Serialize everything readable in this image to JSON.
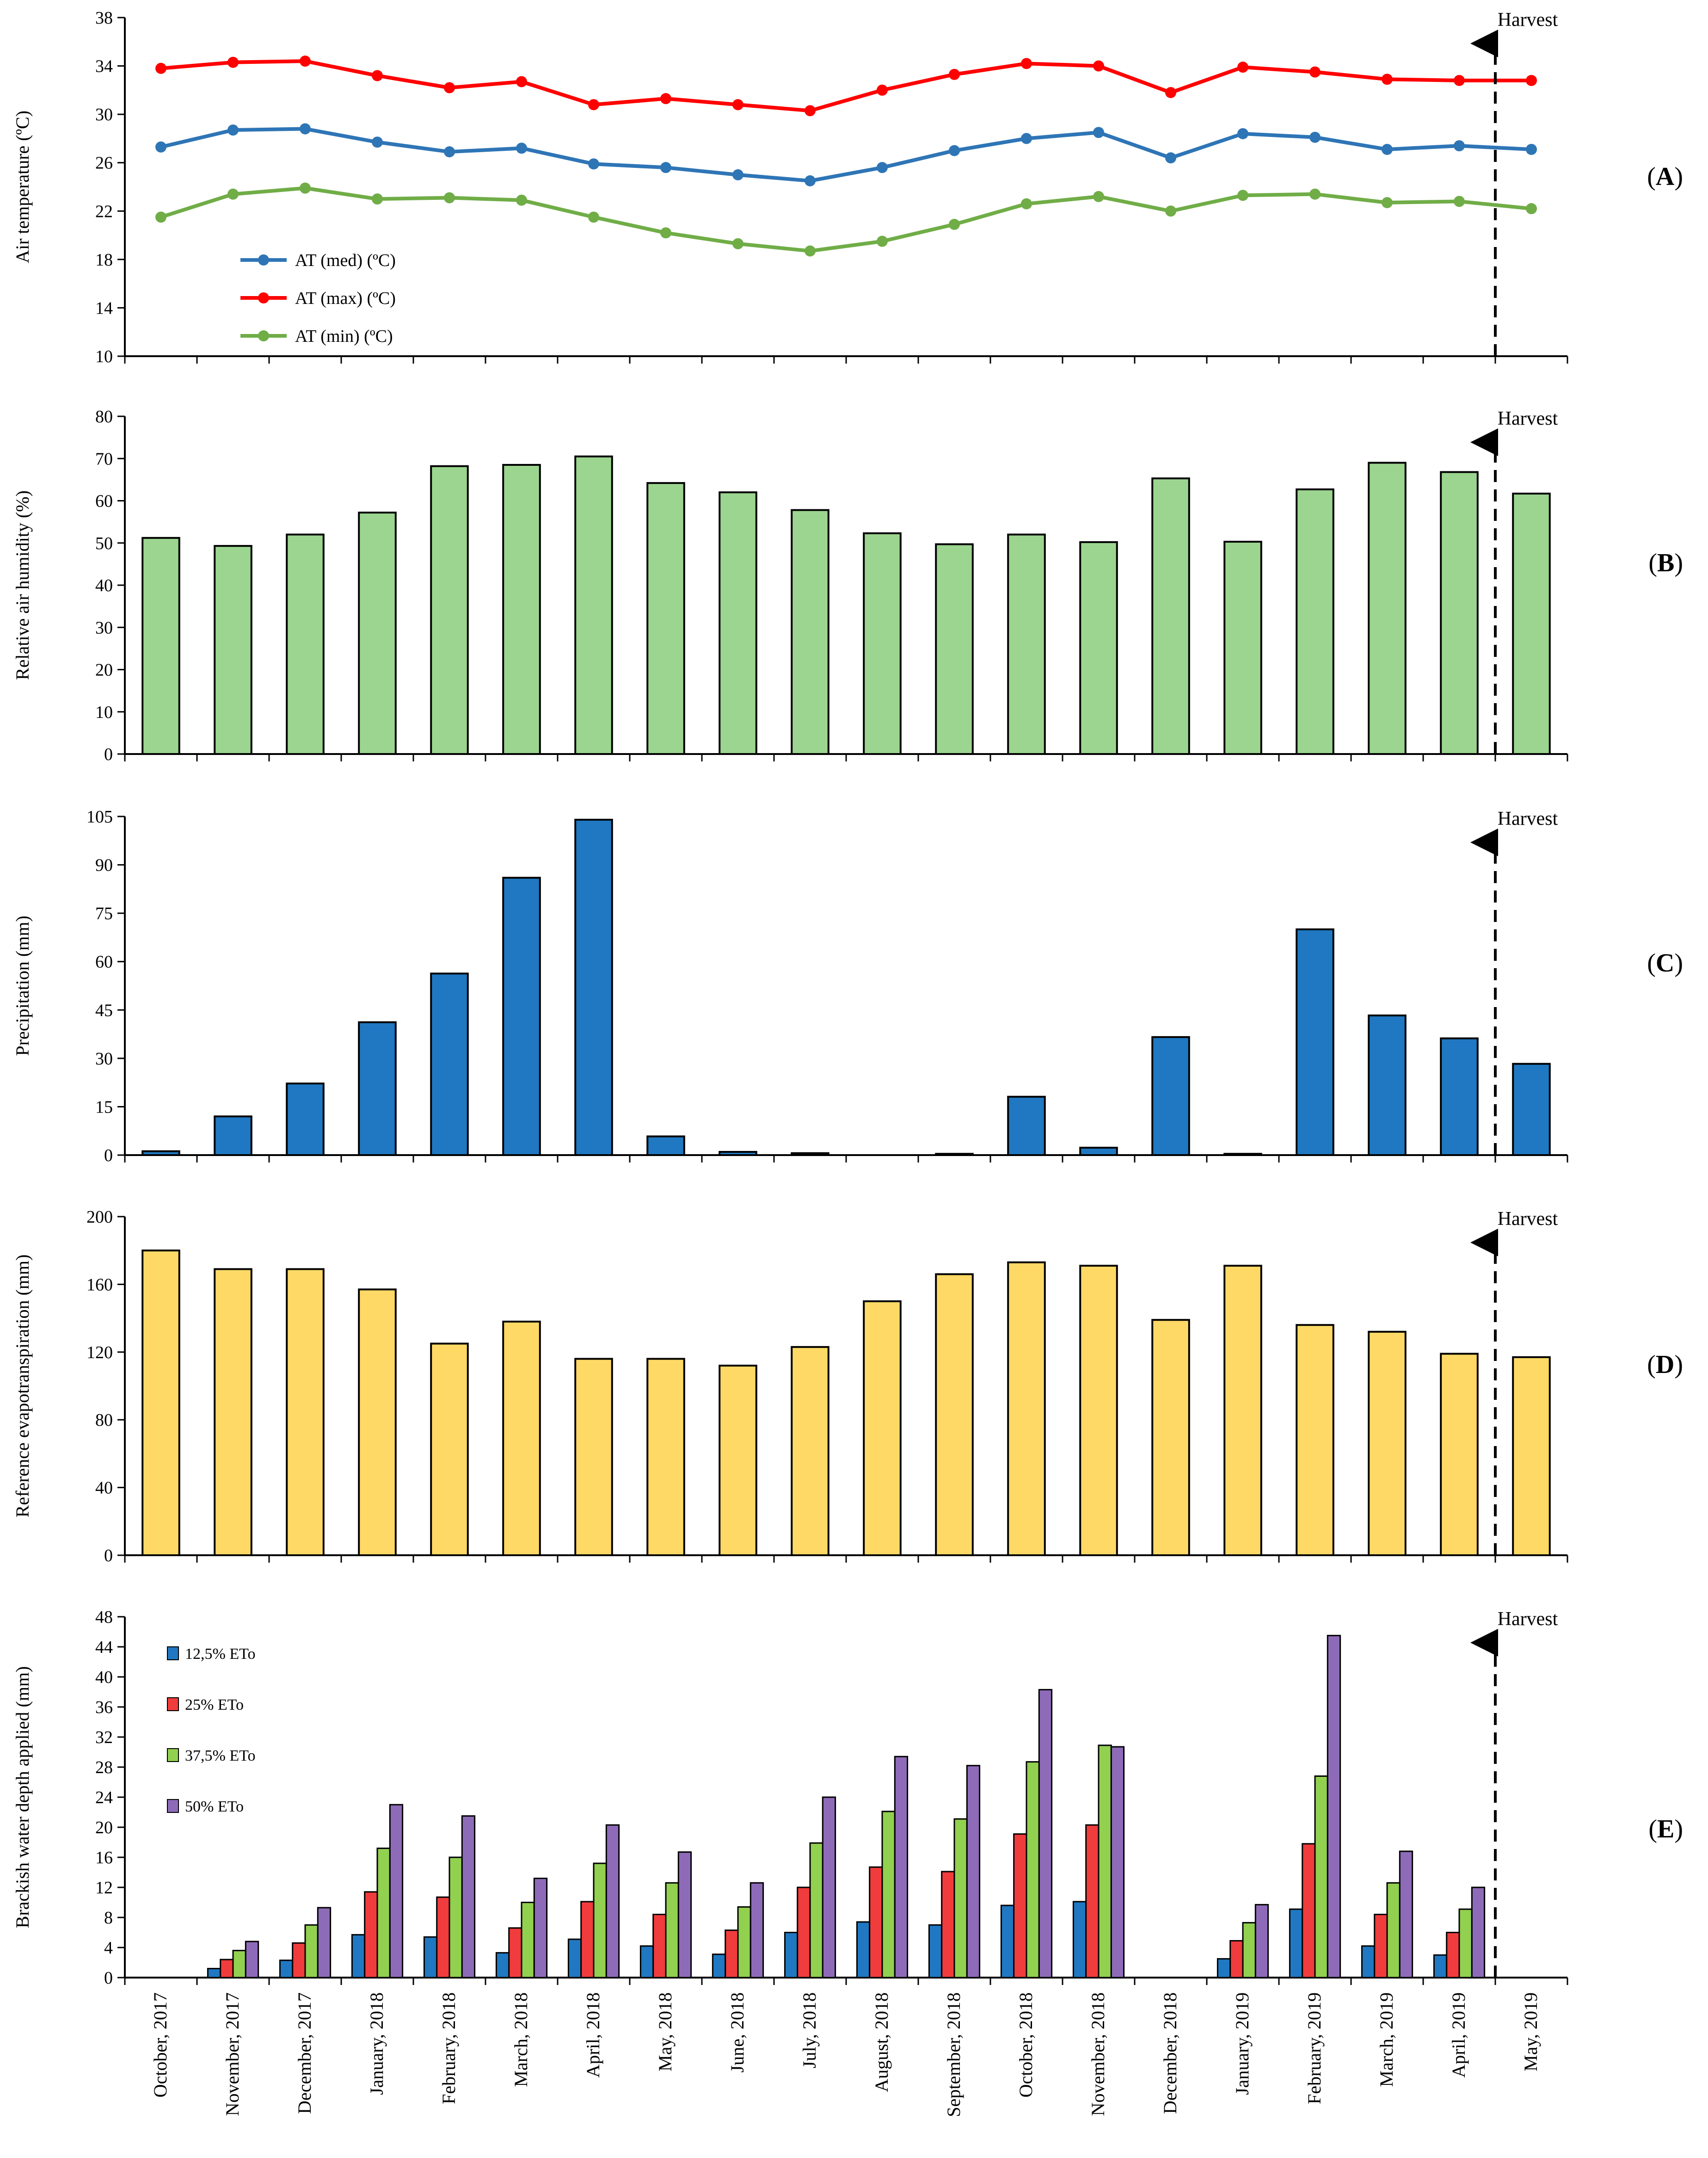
{
  "months": [
    "October, 2017",
    "November, 2017",
    "December, 2017",
    "January, 2018",
    "February, 2018",
    "March, 2018",
    "April, 2018",
    "May, 2018",
    "June, 2018",
    "July, 2018",
    "August, 2018",
    "September, 2018",
    "October, 2018",
    "November, 2018",
    "December, 2018",
    "January, 2019",
    "February, 2019",
    "March, 2019",
    "April, 2019",
    "May, 2019"
  ],
  "harvest_label": "Harvest",
  "chart_data": [
    {
      "id": "A",
      "panel_label": "A",
      "type": "line",
      "ylabel": "Air temperature (ºC)",
      "ylim": [
        10,
        38
      ],
      "yticks": [
        10,
        14,
        18,
        22,
        26,
        30,
        34,
        38
      ],
      "legend_position": "bottom-left",
      "series": [
        {
          "name": "AT (med) (ºC)",
          "color": "#2E75B6",
          "values": [
            27.3,
            28.7,
            28.8,
            27.7,
            26.9,
            27.2,
            25.9,
            25.6,
            25.0,
            24.5,
            25.6,
            27.0,
            28.0,
            28.5,
            26.4,
            28.4,
            28.1,
            27.1,
            27.4,
            27.1
          ]
        },
        {
          "name": "AT (max) (ºC)",
          "color": "#FF0000",
          "values": [
            33.8,
            34.3,
            34.4,
            33.2,
            32.2,
            32.7,
            30.8,
            31.3,
            30.8,
            30.3,
            32.0,
            33.3,
            34.2,
            34.0,
            31.8,
            33.9,
            33.5,
            32.9,
            32.8,
            32.8
          ]
        },
        {
          "name": "AT (min) (ºC)",
          "color": "#70AD47",
          "values": [
            21.5,
            23.4,
            23.9,
            23.0,
            23.1,
            22.9,
            21.5,
            20.2,
            19.3,
            18.7,
            19.5,
            20.9,
            22.6,
            23.2,
            22.0,
            23.3,
            23.4,
            22.7,
            22.8,
            22.2
          ]
        }
      ]
    },
    {
      "id": "B",
      "panel_label": "B",
      "type": "bar",
      "ylabel": "Relative air humidity (%)",
      "ylim": [
        0,
        80
      ],
      "yticks": [
        0,
        10,
        20,
        30,
        40,
        50,
        60,
        70,
        80
      ],
      "series": [
        {
          "name": "Relative air humidity",
          "color": "#9BD58F",
          "values": [
            51.2,
            49.3,
            52.0,
            57.2,
            68.2,
            68.5,
            70.5,
            64.2,
            62.0,
            57.8,
            52.3,
            49.7,
            52.0,
            50.2,
            65.3,
            50.3,
            62.7,
            69.0,
            66.8,
            61.7
          ]
        }
      ]
    },
    {
      "id": "C",
      "panel_label": "C",
      "type": "bar",
      "ylabel": "Precipitation (mm)",
      "ylim": [
        0,
        105
      ],
      "yticks": [
        0,
        15,
        30,
        45,
        60,
        75,
        90,
        105
      ],
      "series": [
        {
          "name": "Precipitation",
          "color": "#1F78C1",
          "values": [
            1.2,
            12.0,
            22.2,
            41.2,
            56.3,
            86.0,
            104.0,
            5.8,
            1.0,
            0.6,
            0,
            0.4,
            18.1,
            2.3,
            36.6,
            0.4,
            70.0,
            43.3,
            36.2,
            28.3
          ]
        }
      ]
    },
    {
      "id": "D",
      "panel_label": "D",
      "type": "bar",
      "ylabel": "Reference evapotranspiration (mm)",
      "ylim": [
        0,
        200
      ],
      "yticks": [
        0,
        40,
        80,
        120,
        160,
        200
      ],
      "series": [
        {
          "name": "Reference evapotranspiration",
          "color": "#FFD966",
          "values": [
            180,
            169,
            169,
            157,
            125,
            138,
            116,
            116,
            112,
            123,
            150,
            166,
            173,
            171,
            139,
            171,
            136,
            132,
            119,
            117
          ]
        }
      ]
    },
    {
      "id": "E",
      "panel_label": "E",
      "type": "bar",
      "ylabel": "Brackish water depth applied (mm)",
      "ylim": [
        0,
        48
      ],
      "yticks": [
        0,
        4,
        8,
        12,
        16,
        20,
        24,
        28,
        32,
        36,
        40,
        44,
        48
      ],
      "legend_position": "top-left",
      "series": [
        {
          "name": "12,5% ETo",
          "color": "#1F78C1",
          "values": [
            0,
            1.2,
            2.3,
            5.7,
            5.4,
            3.3,
            5.1,
            4.2,
            3.1,
            6.0,
            7.4,
            7.0,
            9.6,
            10.1,
            0,
            2.5,
            9.1,
            4.2,
            3.0,
            0
          ]
        },
        {
          "name": "25% ETo",
          "color": "#F03C3C",
          "values": [
            0,
            2.4,
            4.6,
            11.4,
            10.7,
            6.6,
            10.1,
            8.4,
            6.3,
            12.0,
            14.7,
            14.1,
            19.1,
            20.3,
            0,
            4.9,
            17.8,
            8.4,
            6.0,
            0
          ]
        },
        {
          "name": "37,5% ETo",
          "color": "#92D050",
          "values": [
            0,
            3.6,
            7.0,
            17.2,
            16.0,
            10.0,
            15.2,
            12.6,
            9.4,
            17.9,
            22.1,
            21.1,
            28.7,
            30.9,
            0,
            7.3,
            26.8,
            12.6,
            9.1,
            0
          ]
        },
        {
          "name": "50% ETo",
          "color": "#8E6BB8",
          "values": [
            0,
            4.8,
            9.3,
            23.0,
            21.5,
            13.2,
            20.3,
            16.7,
            12.6,
            24.0,
            29.4,
            28.2,
            38.3,
            30.7,
            0,
            9.7,
            45.5,
            16.8,
            12.0,
            0
          ]
        }
      ]
    }
  ]
}
